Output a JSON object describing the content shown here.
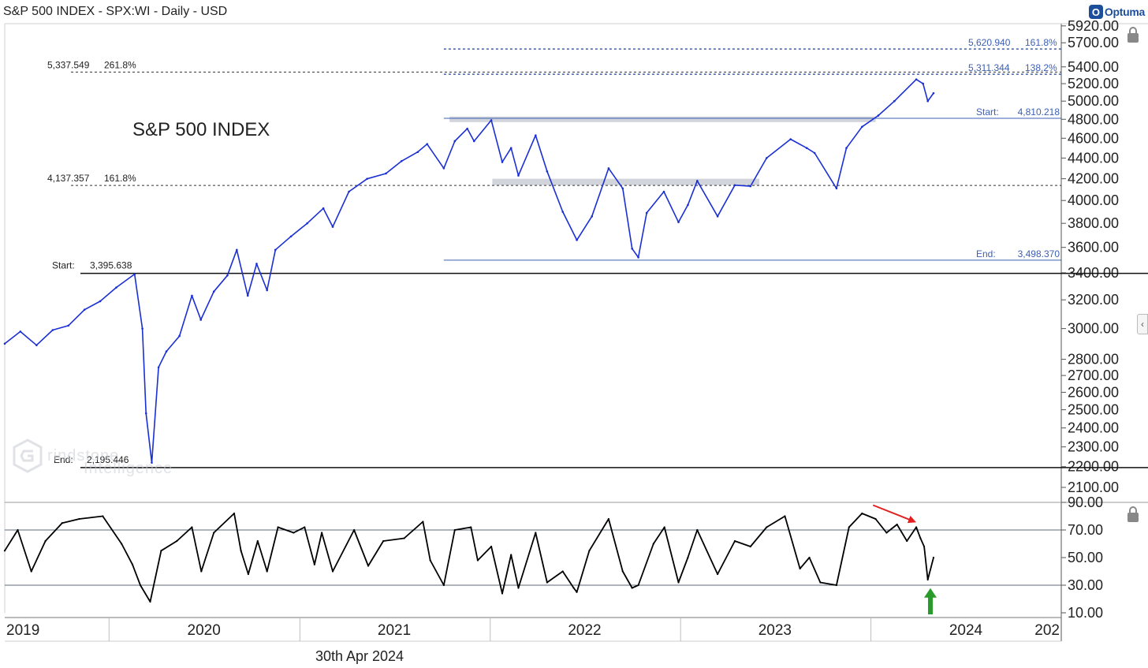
{
  "header": {
    "title": "S&P 500 INDEX - SPX:WI - Daily - USD",
    "brand": "Optuma",
    "brand_mark": "O",
    "footer_date": "30th Apr 2024",
    "watermark_line1": "rindstone",
    "watermark_line2": "Intelligence"
  },
  "icons": {
    "lock": "lock-icon",
    "collapse": "chevron-left-icon"
  },
  "colors": {
    "price": "#1a2fd4",
    "fib": "#3b5fb5",
    "oscillator": "#000000",
    "zone": "#c9cdd3",
    "down_arrow": "#e02020",
    "up_arrow": "#2a9a2a"
  },
  "chart_data": [
    {
      "type": "line",
      "title": "S&P 500 INDEX",
      "y_scale": "log",
      "ylim": [
        2100,
        5950
      ],
      "x_range": [
        "2019-06-15",
        "2024-12-31"
      ],
      "y_ticks": [
        2100,
        2200,
        2300,
        2400,
        2500,
        2600,
        2700,
        2800,
        3000,
        3200,
        3400,
        3600,
        3800,
        4000,
        4200,
        4400,
        4600,
        4800,
        5000,
        5200,
        5400,
        5700,
        5920
      ],
      "y_tick_labels": [
        "2100.00",
        "2200.00",
        "2300.00",
        "2400.00",
        "2500.00",
        "2600.00",
        "2700.00",
        "2800.00",
        "3000.00",
        "3200.00",
        "3400.00",
        "3600.00",
        "3800.00",
        "4000.00",
        "4200.00",
        "4400.00",
        "4600.00",
        "4800.00",
        "5000.00",
        "5200.00",
        "5400.00",
        "5700.00",
        "5920.00"
      ],
      "x_tick_labels": [
        "2019",
        "2020",
        "2021",
        "2022",
        "2023",
        "2024",
        "202"
      ],
      "x_tick_label_dates": [
        "2019-06-20",
        "2020-07-01",
        "2021-07-01",
        "2022-07-01",
        "2023-07-01",
        "2024-07-01",
        "2025-07-01"
      ],
      "x_separators": [
        "2020-01-01",
        "2021-01-01",
        "2022-01-01",
        "2023-01-01",
        "2024-01-01",
        "2025-01-01"
      ],
      "series": [
        {
          "x": [
            "2019-06-15",
            "2019-07-15",
            "2019-08-15",
            "2019-09-15",
            "2019-10-15",
            "2019-11-15",
            "2019-12-15",
            "2020-01-15",
            "2020-02-19",
            "2020-03-05",
            "2020-03-12",
            "2020-03-23",
            "2020-04-05",
            "2020-04-20",
            "2020-05-15",
            "2020-06-08",
            "2020-06-25",
            "2020-07-20",
            "2020-08-15",
            "2020-09-02",
            "2020-09-23",
            "2020-10-10",
            "2020-10-30",
            "2020-11-15",
            "2020-12-15",
            "2021-01-15",
            "2021-02-15",
            "2021-03-05",
            "2021-04-05",
            "2021-05-10",
            "2021-06-15",
            "2021-07-15",
            "2021-08-15",
            "2021-09-02",
            "2021-10-04",
            "2021-10-25",
            "2021-11-18",
            "2021-12-01",
            "2022-01-03",
            "2022-01-24",
            "2022-02-10",
            "2022-02-24",
            "2022-03-29",
            "2022-04-20",
            "2022-05-20",
            "2022-06-16",
            "2022-07-15",
            "2022-08-16",
            "2022-09-12",
            "2022-09-30",
            "2022-10-12",
            "2022-10-28",
            "2022-11-30",
            "2022-12-28",
            "2023-01-15",
            "2023-02-02",
            "2023-03-13",
            "2023-04-15",
            "2023-05-15",
            "2023-06-15",
            "2023-07-31",
            "2023-08-31",
            "2023-09-15",
            "2023-10-27",
            "2023-11-15",
            "2023-12-15",
            "2024-01-15",
            "2024-02-15",
            "2024-03-28",
            "2024-04-10",
            "2024-04-19",
            "2024-04-30"
          ],
          "y": [
            2900,
            2980,
            2890,
            2990,
            3020,
            3130,
            3190,
            3290,
            3390,
            3000,
            2480,
            2220,
            2750,
            2850,
            2950,
            3230,
            3060,
            3260,
            3380,
            3580,
            3230,
            3470,
            3270,
            3580,
            3690,
            3800,
            3930,
            3770,
            4080,
            4200,
            4250,
            4370,
            4460,
            4540,
            4300,
            4570,
            4700,
            4570,
            4790,
            4360,
            4500,
            4230,
            4630,
            4270,
            3900,
            3660,
            3860,
            4300,
            4110,
            3590,
            3520,
            3890,
            4080,
            3810,
            3960,
            4180,
            3860,
            4140,
            4130,
            4400,
            4590,
            4500,
            4450,
            4110,
            4500,
            4720,
            4840,
            5000,
            5250,
            5200,
            5000,
            5090
          ]
        }
      ],
      "annotations": {
        "fib_left": [
          {
            "price_label": "5,337.549",
            "ratio_label": "261.8%",
            "y": 5337.549
          },
          {
            "price_label": "4,137.357",
            "ratio_label": "161.8%",
            "y": 4137.357
          }
        ],
        "fib_right": [
          {
            "price_label": "5,620.940",
            "ratio_label": "161.8%",
            "y": 5620.94
          },
          {
            "price_label": "5,311.344",
            "ratio_label": "138.2%",
            "y": 5311.344
          }
        ],
        "start_left": {
          "label": "Start:",
          "value_label": "3,395.638",
          "y": 3395.638
        },
        "end_left": {
          "label": "End:",
          "value_label": "2,195.446",
          "y": 2195.446
        },
        "start_right": {
          "label": "Start:",
          "value_label": "4,810.218",
          "y": 4810.218
        },
        "end_right": {
          "label": "End:",
          "value_label": "3,498.370",
          "y": 3498.37
        },
        "zones": [
          {
            "x_start": "2021-10-15",
            "x_end": "2024-01-10",
            "y_low": 4770,
            "y_high": 4830
          },
          {
            "x_start": "2022-01-05",
            "x_end": "2023-06-01",
            "y_low": 4140,
            "y_high": 4200
          }
        ]
      }
    },
    {
      "type": "line",
      "title": "",
      "ylim": [
        10,
        90
      ],
      "y_ticks": [
        10,
        30,
        50,
        70,
        90
      ],
      "y_tick_labels": [
        "10.00",
        "30.00",
        "50.00",
        "70.00",
        "90.00"
      ],
      "reference_lines": [
        30,
        70
      ],
      "series": [
        {
          "x": [
            "2019-06-15",
            "2019-07-10",
            "2019-08-05",
            "2019-09-01",
            "2019-10-03",
            "2019-11-05",
            "2019-12-20",
            "2020-01-25",
            "2020-02-15",
            "2020-03-01",
            "2020-03-20",
            "2020-04-10",
            "2020-05-10",
            "2020-06-08",
            "2020-06-26",
            "2020-07-20",
            "2020-08-28",
            "2020-09-10",
            "2020-09-24",
            "2020-10-12",
            "2020-10-30",
            "2020-11-20",
            "2020-12-20",
            "2021-01-10",
            "2021-01-29",
            "2021-02-12",
            "2021-03-05",
            "2021-04-15",
            "2021-05-12",
            "2021-06-10",
            "2021-07-20",
            "2021-08-25",
            "2021-09-08",
            "2021-10-04",
            "2021-10-25",
            "2021-11-25",
            "2021-12-08",
            "2022-01-03",
            "2022-01-24",
            "2022-02-10",
            "2022-02-24",
            "2022-03-29",
            "2022-04-20",
            "2022-05-20",
            "2022-06-10",
            "2022-06-16",
            "2022-07-10",
            "2022-08-16",
            "2022-09-12",
            "2022-09-30",
            "2022-10-12",
            "2022-11-10",
            "2022-12-01",
            "2022-12-28",
            "2023-01-15",
            "2023-02-02",
            "2023-03-13",
            "2023-04-15",
            "2023-05-15",
            "2023-06-15",
            "2023-07-20",
            "2023-08-18",
            "2023-09-05",
            "2023-09-26",
            "2023-10-27",
            "2023-11-20",
            "2023-12-15",
            "2024-01-10",
            "2024-01-31",
            "2024-02-20",
            "2024-03-10",
            "2024-03-28",
            "2024-04-05",
            "2024-04-12",
            "2024-04-19",
            "2024-04-30"
          ],
          "y": [
            55,
            70,
            40,
            62,
            75,
            78,
            80,
            60,
            45,
            30,
            18,
            55,
            62,
            72,
            40,
            68,
            82,
            55,
            38,
            62,
            40,
            72,
            68,
            72,
            45,
            68,
            40,
            70,
            44,
            62,
            64,
            76,
            48,
            30,
            70,
            72,
            48,
            58,
            24,
            52,
            28,
            68,
            32,
            40,
            28,
            25,
            55,
            78,
            40,
            28,
            30,
            60,
            72,
            32,
            50,
            70,
            38,
            62,
            58,
            72,
            80,
            42,
            50,
            32,
            30,
            72,
            82,
            78,
            68,
            74,
            62,
            72,
            64,
            58,
            34,
            50
          ]
        }
      ],
      "annotations": {
        "down_arrow": {
          "from": [
            "2024-01-05",
            88
          ],
          "to": [
            "2024-03-25",
            76
          ]
        },
        "up_arrow": {
          "from": [
            "2024-04-24",
            10
          ],
          "to": [
            "2024-04-24",
            29
          ]
        }
      }
    }
  ]
}
